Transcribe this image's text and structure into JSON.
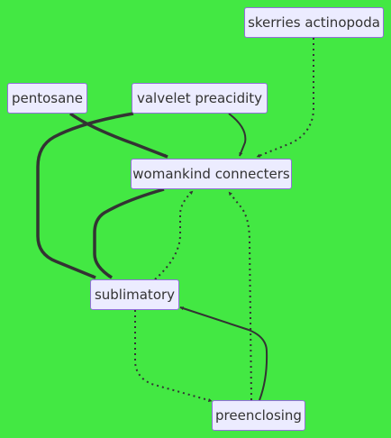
{
  "nodes": [
    {
      "id": "skerries",
      "label": "skerries actinopoda"
    },
    {
      "id": "pentosane",
      "label": "pentosane"
    },
    {
      "id": "valvelet",
      "label": "valvelet preacidity"
    },
    {
      "id": "womankind",
      "label": "womankind connecters"
    },
    {
      "id": "sublimatory",
      "label": "sublimatory"
    },
    {
      "id": "preenclosing",
      "label": "preenclosing"
    }
  ],
  "edges": [
    {
      "from": "skerries",
      "to": "womankind",
      "style": "dotted"
    },
    {
      "from": "pentosane",
      "to": "womankind",
      "style": "thick"
    },
    {
      "from": "valvelet",
      "to": "womankind",
      "style": "solid"
    },
    {
      "from": "valvelet",
      "to": "sublimatory",
      "style": "thick"
    },
    {
      "from": "womankind",
      "to": "sublimatory",
      "style": "thick"
    },
    {
      "from": "sublimatory",
      "to": "womankind",
      "style": "dotted"
    },
    {
      "from": "preenclosing",
      "to": "womankind",
      "style": "dotted"
    },
    {
      "from": "sublimatory",
      "to": "preenclosing",
      "style": "dotted"
    },
    {
      "from": "preenclosing",
      "to": "sublimatory",
      "style": "solid"
    }
  ],
  "colors": {
    "background": "#43e843",
    "node_fill": "#ececff",
    "node_border": "#9370db",
    "edge": "#333333"
  }
}
